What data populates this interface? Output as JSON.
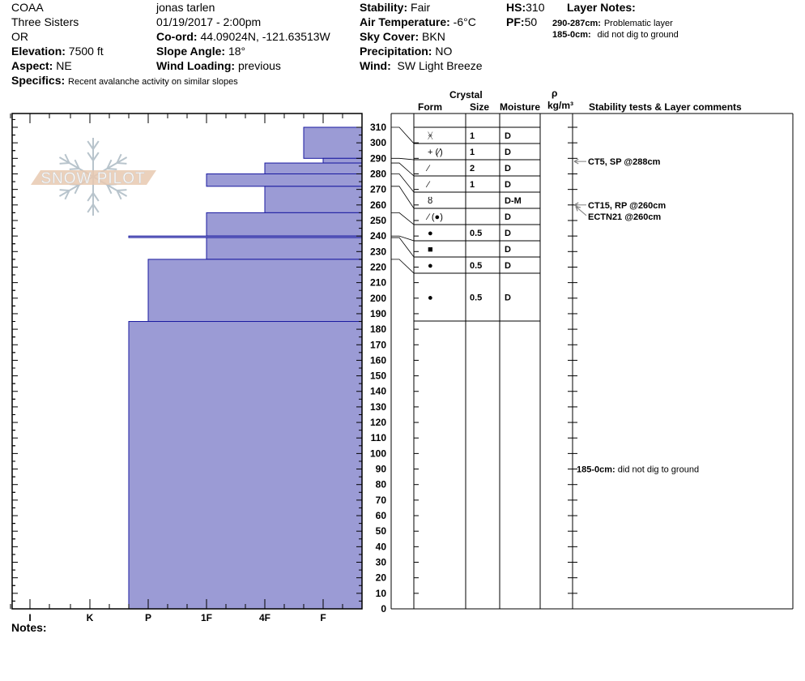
{
  "header": {
    "org": "COAA",
    "location": "Three Sisters",
    "state": "OR",
    "elevation": {
      "label": "Elevation:",
      "value": "7500 ft"
    },
    "aspect": {
      "label": "Aspect:",
      "value": "NE"
    },
    "observer": "jonas tarlen",
    "datetime": "01/19/2017 - 2:00pm",
    "coord": {
      "label": "Co-ord:",
      "value": "44.09024N, -121.63513W"
    },
    "slope_angle": {
      "label": "Slope Angle:",
      "value": "18°"
    },
    "wind_loading": {
      "label": "Wind Loading:",
      "value": "previous"
    },
    "stability": {
      "label": "Stability:",
      "value": "Fair"
    },
    "air_temp": {
      "label": "Air Temperature:",
      "value": "-6°C"
    },
    "sky_cover": {
      "label": "Sky Cover:",
      "value": "BKN"
    },
    "precipitation": {
      "label": "Precipitation:",
      "value": "NO"
    },
    "wind": {
      "label": "Wind:",
      "value": "SW Light Breeze"
    },
    "hs": {
      "label": "HS:",
      "value": "310"
    },
    "pf": {
      "label": "PF:",
      "value": "50"
    },
    "layer_notes_title": "Layer Notes:",
    "layer_notes": [
      {
        "range": "290-287cm:",
        "text": "Problematic layer"
      },
      {
        "range": "185-0cm:",
        "text": "did not dig to ground"
      }
    ],
    "specifics": {
      "label": "Specifics:",
      "value": "Recent avalanche activity on similar slopes"
    }
  },
  "logo_text": "SNOW PILOT",
  "notes_label": "Notes:",
  "table_headers": {
    "crystal": "Crystal",
    "form": "Form",
    "size": "Size",
    "moisture": "Moisture",
    "rho": "ρ",
    "density_unit": "kg/m³",
    "comments": "Stability tests & Layer comments"
  },
  "colors": {
    "bar_fill": "#9b9bd5",
    "bar_stroke": "#1a1aa0",
    "arrow": "#808080",
    "logo_band": "#e8c9b0",
    "logo_flake": "#b8c4cc"
  },
  "chart_data": {
    "type": "bar",
    "orientation": "horizontal",
    "title": "",
    "ylabel": "",
    "ylim": [
      0,
      310
    ],
    "yticks_step": 10,
    "hardness_scale": [
      "I",
      "K",
      "P",
      "1F",
      "4F",
      "F"
    ],
    "layers": [
      {
        "top": 310,
        "bottom": 290,
        "hardness": "F+",
        "form": "decomposing-fragments",
        "form_symbol": "ᚸ",
        "size": "1",
        "moisture": "D"
      },
      {
        "top": 290,
        "bottom": 287,
        "hardness": "F",
        "form": "precip-particles-(facets)",
        "form_symbol": "+ (⁄)",
        "size": "1",
        "moisture": "D"
      },
      {
        "top": 287,
        "bottom": 280,
        "hardness": "4F",
        "form": "facets",
        "form_symbol": "⁄",
        "size": "2",
        "moisture": "D"
      },
      {
        "top": 280,
        "bottom": 272,
        "hardness": "1F",
        "form": "facets",
        "form_symbol": "⁄",
        "size": "1",
        "moisture": "D"
      },
      {
        "top": 272,
        "bottom": 255,
        "hardness": "4F",
        "form": "melt-forms",
        "form_symbol": "ȣ",
        "size": "",
        "moisture": "D-M"
      },
      {
        "top": 255,
        "bottom": 240,
        "hardness": "1F",
        "form": "facets-(rounds)",
        "form_symbol": "⁄ (●)",
        "size": "",
        "moisture": "D"
      },
      {
        "top": 240,
        "bottom": 239,
        "hardness": "P+",
        "form": "rounds",
        "form_symbol": "●",
        "size": "0.5",
        "moisture": "D"
      },
      {
        "top": 239,
        "bottom": 225,
        "hardness": "1F",
        "form": "rounding-facets",
        "form_symbol": "■",
        "size": "",
        "moisture": "D"
      },
      {
        "top": 225,
        "bottom": 185,
        "hardness": "P",
        "form": "rounds",
        "form_symbol": "●",
        "size": "0.5",
        "moisture": "D"
      },
      {
        "top": 185,
        "bottom": 0,
        "hardness": "P+",
        "form": "rounds",
        "form_symbol": "●",
        "size": "0.5",
        "moisture": "D"
      }
    ],
    "stability_tests": [
      {
        "depth": 288,
        "text": "CT5, SP @288cm"
      },
      {
        "depth": 260,
        "text": "CT15, RP @260cm"
      },
      {
        "depth": 260,
        "text": "ECTN21 @260cm"
      }
    ],
    "layer_comments": [
      {
        "depth": 90,
        "range": "185-0cm:",
        "text": "did not dig to ground"
      }
    ]
  }
}
